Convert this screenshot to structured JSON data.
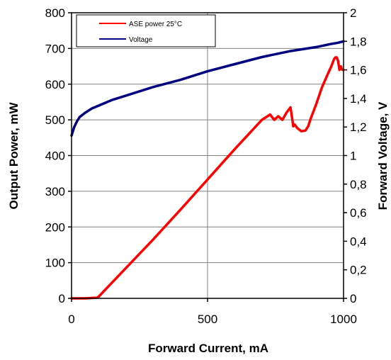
{
  "chart_data": {
    "type": "line",
    "title": "",
    "xlabel": "Forward Current, mA",
    "ylabel": "Output Power, mW",
    "y2label": "Forward Voltage, V",
    "xlim": [
      0,
      1000
    ],
    "ylim": [
      0,
      800
    ],
    "y2lim": [
      0,
      2
    ],
    "x_ticks": [
      0,
      500,
      1000
    ],
    "x_tick_labels": [
      "0",
      "500",
      "1000"
    ],
    "y_ticks": [
      0,
      100,
      200,
      300,
      400,
      500,
      600,
      700,
      800
    ],
    "y_tick_labels": [
      "0",
      "100",
      "200",
      "300",
      "400",
      "500",
      "600",
      "700",
      "800"
    ],
    "y2_ticks": [
      0,
      0.2,
      0.4,
      0.6,
      0.8,
      1,
      1.2,
      1.4,
      1.6,
      1.8,
      2
    ],
    "y2_tick_labels": [
      "0",
      "0,2",
      "0,4",
      "0,6",
      "0,8",
      "1",
      "1,2",
      "1,4",
      "1,6",
      "1,8",
      "2"
    ],
    "grid": "major x and y (gray)",
    "legend_position": "top-left",
    "series": [
      {
        "name": "ASE power 25°C",
        "color": "#ff0000",
        "axis": "left",
        "x": [
          0,
          50,
          95,
          100,
          150,
          200,
          300,
          400,
          500,
          600,
          700,
          720,
          730,
          745,
          760,
          775,
          790,
          805,
          810,
          815,
          820,
          830,
          845,
          860,
          870,
          880,
          900,
          920,
          940,
          955,
          965,
          970,
          975,
          980,
          985,
          990,
          993,
          997,
          1000
        ],
        "y": [
          0,
          0,
          2,
          5,
          45,
          85,
          165,
          248,
          333,
          418,
          500,
          510,
          515,
          500,
          510,
          500,
          520,
          535,
          510,
          482,
          487,
          477,
          468,
          470,
          482,
          505,
          545,
          590,
          625,
          650,
          670,
          675,
          675,
          665,
          640,
          650,
          642,
          640,
          640
        ]
      },
      {
        "name": "Voltage",
        "color": "#000080",
        "axis": "right",
        "x": [
          0,
          10,
          20,
          30,
          50,
          75,
          100,
          150,
          200,
          300,
          400,
          500,
          600,
          700,
          800,
          900,
          950,
          980,
          1000
        ],
        "y": [
          1.14,
          1.2,
          1.24,
          1.27,
          1.3,
          1.33,
          1.35,
          1.39,
          1.42,
          1.48,
          1.53,
          1.59,
          1.64,
          1.69,
          1.73,
          1.76,
          1.78,
          1.79,
          1.8
        ]
      }
    ]
  }
}
